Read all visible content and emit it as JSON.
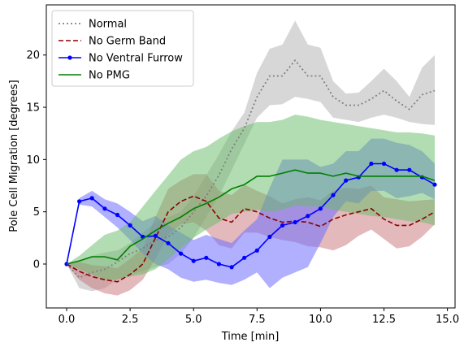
{
  "chart_data": {
    "type": "line",
    "xlabel": "Time [min]",
    "ylabel": "Pole Cell Migration [degrees]",
    "xlim": [
      -0.8,
      15.3
    ],
    "ylim": [
      -4.2,
      24.8
    ],
    "xticks": [
      0.0,
      2.5,
      5.0,
      7.5,
      10.0,
      12.5,
      15.0
    ],
    "xtick_labels": [
      "0.0",
      "2.5",
      "5.0",
      "7.5",
      "10.0",
      "12.5",
      "15.0"
    ],
    "yticks": [
      0,
      5,
      10,
      15,
      20
    ],
    "ytick_labels": [
      "0",
      "5",
      "10",
      "15",
      "20"
    ],
    "grid": false,
    "legend_position": "top-left",
    "series": [
      {
        "name": "Normal",
        "color": "#808080",
        "band_color": "#d0d0d0",
        "band_opacity": 0.85,
        "line_style": "dotted",
        "marker": "none",
        "x": [
          0,
          0.5,
          1,
          1.5,
          2,
          2.5,
          3,
          3.5,
          4,
          4.5,
          5,
          5.5,
          6,
          6.5,
          7,
          7.5,
          8,
          8.5,
          9,
          9.5,
          10,
          10.5,
          11,
          11.5,
          12,
          12.5,
          13,
          13.5,
          14,
          14.5
        ],
        "y": [
          0,
          -1.3,
          -0.8,
          -0.5,
          0.2,
          1.0,
          1.5,
          2.3,
          2.6,
          3.5,
          5.0,
          6.5,
          8.5,
          11.0,
          13.0,
          16.0,
          18.0,
          18.0,
          19.5,
          18.0,
          18.0,
          16.0,
          15.2,
          15.2,
          15.8,
          16.6,
          15.6,
          14.8,
          16.2,
          16.6
        ],
        "lower": [
          0,
          -2.3,
          -2.6,
          -2.3,
          -1.5,
          -1.0,
          -0.7,
          -0.3,
          0.0,
          1.0,
          2.5,
          4.5,
          6.5,
          9.0,
          11.5,
          14.0,
          15.2,
          15.3,
          16.0,
          15.8,
          15.5,
          14.0,
          13.8,
          13.6,
          14.0,
          14.3,
          14.0,
          13.6,
          13.4,
          13.3
        ],
        "upper": [
          0,
          0.2,
          0.8,
          1.1,
          1.3,
          2.0,
          3.0,
          4.0,
          4.5,
          5.0,
          6.5,
          8.5,
          10.5,
          12.7,
          14.5,
          18.3,
          20.6,
          21.0,
          23.3,
          21.0,
          20.7,
          17.5,
          16.3,
          16.4,
          17.5,
          18.7,
          17.5,
          16.0,
          18.8,
          20.0
        ]
      },
      {
        "name": "No Germ Band",
        "color": "#8b0000",
        "band_color": "#c8737a",
        "band_opacity": 0.5,
        "line_style": "dashed",
        "marker": "none",
        "x": [
          0,
          0.5,
          1,
          1.5,
          2,
          2.5,
          3,
          3.5,
          4,
          4.5,
          5,
          5.5,
          6,
          6.5,
          7,
          7.5,
          8,
          8.5,
          9,
          9.5,
          10,
          10.5,
          11,
          11.5,
          12,
          12.5,
          13,
          13.5,
          14,
          14.5
        ],
        "y": [
          0,
          -0.7,
          -1.2,
          -1.5,
          -1.7,
          -1.0,
          0.0,
          2.5,
          5.0,
          6.0,
          6.5,
          6.0,
          4.4,
          4.0,
          5.3,
          5.0,
          4.4,
          4.0,
          4.1,
          4.0,
          3.6,
          4.3,
          4.7,
          5.0,
          5.3,
          4.3,
          3.7,
          3.7,
          4.3,
          5.0
        ],
        "lower": [
          0,
          -1.5,
          -2.3,
          -2.8,
          -3.0,
          -2.5,
          -1.5,
          0.5,
          2.8,
          3.8,
          4.0,
          3.2,
          1.8,
          1.5,
          3.0,
          3.0,
          2.6,
          2.3,
          2.1,
          1.7,
          1.6,
          1.3,
          1.8,
          2.7,
          3.3,
          2.4,
          1.5,
          1.7,
          2.6,
          3.8
        ],
        "upper": [
          0,
          0.2,
          -0.1,
          -0.2,
          -0.4,
          0.5,
          1.5,
          4.5,
          7.2,
          8.0,
          8.6,
          8.6,
          7.0,
          6.6,
          7.6,
          7.0,
          6.5,
          5.8,
          6.2,
          6.4,
          6.1,
          7.0,
          7.3,
          7.2,
          7.5,
          6.4,
          6.2,
          6.0,
          6.1,
          6.2
        ]
      },
      {
        "name": "No Ventral Furrow",
        "color": "#0000ff",
        "band_color": "#7070ff",
        "band_opacity": 0.55,
        "line_style": "solid",
        "marker": "dot",
        "x": [
          0,
          0.5,
          1,
          1.5,
          2,
          2.5,
          3,
          3.5,
          4,
          4.5,
          5,
          5.5,
          6,
          6.5,
          7,
          7.5,
          8,
          8.5,
          9,
          9.5,
          10,
          10.5,
          11,
          11.5,
          12,
          12.5,
          13,
          13.5,
          14,
          14.5
        ],
        "y": [
          0,
          6.0,
          6.3,
          5.3,
          4.7,
          3.7,
          2.6,
          2.7,
          2.0,
          1.0,
          0.3,
          0.6,
          0.0,
          -0.3,
          0.6,
          1.3,
          2.6,
          3.7,
          4.0,
          4.6,
          5.3,
          6.6,
          8.0,
          8.3,
          9.6,
          9.6,
          9.0,
          9.0,
          8.3,
          7.6
        ],
        "lower": [
          0,
          5.7,
          5.5,
          4.5,
          3.5,
          2.3,
          1.0,
          0.0,
          -0.5,
          -1.3,
          -1.7,
          -1.5,
          -1.8,
          -2.0,
          -1.5,
          -0.8,
          -2.3,
          -1.3,
          -0.8,
          -0.3,
          2.0,
          4.5,
          6.0,
          5.8,
          7.0,
          7.0,
          6.3,
          6.5,
          6.8,
          6.2
        ],
        "upper": [
          0,
          6.3,
          7.0,
          6.2,
          5.8,
          5.0,
          4.1,
          4.6,
          3.7,
          3.0,
          2.3,
          2.8,
          2.4,
          2.0,
          3.2,
          4.3,
          7.3,
          10.0,
          10.0,
          10.0,
          9.3,
          9.6,
          10.8,
          10.8,
          12.0,
          12.0,
          11.6,
          11.4,
          10.8,
          9.6
        ]
      },
      {
        "name": "No PMG",
        "color": "#007f00",
        "band_color": "#66bb66",
        "band_opacity": 0.5,
        "line_style": "solid",
        "marker": "none",
        "x": [
          0,
          0.5,
          1,
          1.5,
          2,
          2.5,
          3,
          3.5,
          4,
          4.5,
          5,
          5.5,
          6,
          6.5,
          7,
          7.5,
          8,
          8.5,
          9,
          9.5,
          10,
          10.5,
          11,
          11.5,
          12,
          12.5,
          13,
          13.5,
          14,
          14.5
        ],
        "y": [
          0,
          0.3,
          0.7,
          0.7,
          0.4,
          1.7,
          2.4,
          3.2,
          3.9,
          4.5,
          5.3,
          5.8,
          6.4,
          7.2,
          7.6,
          8.4,
          8.4,
          8.7,
          9.0,
          8.7,
          8.7,
          8.4,
          8.7,
          8.4,
          8.4,
          8.4,
          8.4,
          8.4,
          8.4,
          8.0
        ],
        "lower": [
          0,
          -0.5,
          -1.0,
          -1.5,
          -1.5,
          -1.2,
          -1.0,
          -0.5,
          0.5,
          1.5,
          2.5,
          3.3,
          4.0,
          4.8,
          5.0,
          5.2,
          5.0,
          5.2,
          5.6,
          5.5,
          5.5,
          5.2,
          5.0,
          4.8,
          4.6,
          4.5,
          4.3,
          4.1,
          4.0,
          3.7
        ],
        "upper": [
          0,
          0.8,
          1.8,
          2.8,
          3.2,
          4.0,
          5.5,
          7.0,
          8.5,
          10.0,
          10.8,
          11.2,
          12.0,
          12.7,
          13.2,
          13.6,
          13.6,
          13.8,
          14.3,
          14.1,
          13.8,
          13.6,
          13.4,
          13.2,
          13.0,
          12.8,
          12.6,
          12.6,
          12.5,
          12.3
        ]
      }
    ]
  }
}
